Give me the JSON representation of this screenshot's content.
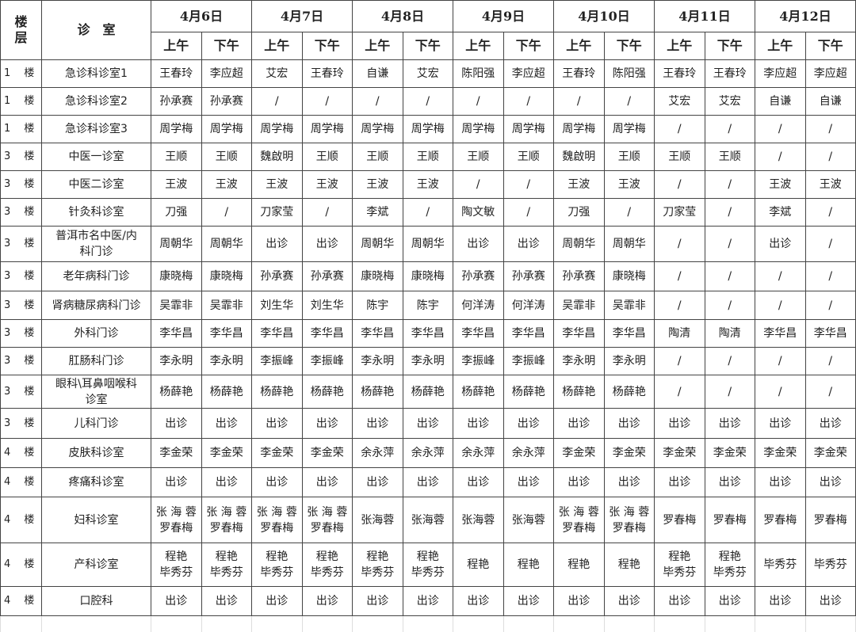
{
  "header": {
    "floor_label": "楼\n层",
    "room_label": "诊　室",
    "dates": [
      "4月6日",
      "4月7日",
      "4月8日",
      "4月9日",
      "4月10日",
      "4月11日",
      "4月12日"
    ],
    "am_label": "上午",
    "pm_label": "下午"
  },
  "rows": [
    {
      "floor": "1　 楼",
      "room": "急诊科诊室1",
      "cells": [
        "王春玲",
        "李应超",
        "艾宏",
        "王春玲",
        "自谦",
        "艾宏",
        "陈阳强",
        "李应超",
        "王春玲",
        "陈阳强",
        "王春玲",
        "王春玲",
        "李应超",
        "李应超"
      ]
    },
    {
      "floor": "1　 楼",
      "room": "急诊科诊室2",
      "cells": [
        "孙承赛",
        "孙承赛",
        "/",
        "/",
        "/",
        "/",
        "/",
        "/",
        "/",
        "/",
        "艾宏",
        "艾宏",
        "自谦",
        "自谦"
      ]
    },
    {
      "floor": "1　 楼",
      "room": "急诊科诊室3",
      "cells": [
        "周学梅",
        "周学梅",
        "周学梅",
        "周学梅",
        "周学梅",
        "周学梅",
        "周学梅",
        "周学梅",
        "周学梅",
        "周学梅",
        "/",
        "/",
        "/",
        "/"
      ]
    },
    {
      "floor": "3　 楼",
      "room": "中医一诊室",
      "cells": [
        "王顺",
        "王顺",
        "魏啟明",
        "王顺",
        "王顺",
        "王顺",
        "王顺",
        "王顺",
        "魏啟明",
        "王顺",
        "王顺",
        "王顺",
        "/",
        "/"
      ]
    },
    {
      "floor": "3　 楼",
      "room": "中医二诊室",
      "cells": [
        "王波",
        "王波",
        "王波",
        "王波",
        "王波",
        "王波",
        "/",
        "/",
        "王波",
        "王波",
        "/",
        "/",
        "王波",
        "王波"
      ]
    },
    {
      "floor": "3　 楼",
      "room": "针灸科诊室",
      "cells": [
        "刀强",
        "/",
        "刀家莹",
        "/",
        "李斌",
        "/",
        "陶文敏",
        "/",
        "刀强",
        "/",
        "刀家莹",
        "/",
        "李斌",
        "/"
      ]
    },
    {
      "floor": "3　 楼",
      "room": "普洱市名中医/内\n科门诊",
      "cells": [
        "周朝华",
        "周朝华",
        "出诊",
        "出诊",
        "周朝华",
        "周朝华",
        "出诊",
        "出诊",
        "周朝华",
        "周朝华",
        "/",
        "/",
        "出诊",
        "/"
      ]
    },
    {
      "floor": "3　 楼",
      "room": "老年病科门诊",
      "cells": [
        "康晓梅",
        "康晓梅",
        "孙承赛",
        "孙承赛",
        "康晓梅",
        "康晓梅",
        "孙承赛",
        "孙承赛",
        "孙承赛",
        "康晓梅",
        "/",
        "/",
        "/",
        "/"
      ]
    },
    {
      "floor": "3　 楼",
      "room": "肾病糖尿病科门诊",
      "cells": [
        "吴霏非",
        "吴霏非",
        "刘生华",
        "刘生华",
        "陈宇",
        "陈宇",
        "何洋涛",
        "何洋涛",
        "吴霏非",
        "吴霏非",
        "/",
        "/",
        "/",
        "/"
      ]
    },
    {
      "floor": "3　 楼",
      "room": "外科门诊",
      "cells": [
        "李华昌",
        "李华昌",
        "李华昌",
        "李华昌",
        "李华昌",
        "李华昌",
        "李华昌",
        "李华昌",
        "李华昌",
        "李华昌",
        "陶清",
        "陶清",
        "李华昌",
        "李华昌"
      ]
    },
    {
      "floor": "3　 楼",
      "room": "肛肠科门诊",
      "cells": [
        "李永明",
        "李永明",
        "李振峰",
        "李振峰",
        "李永明",
        "李永明",
        "李振峰",
        "李振峰",
        "李永明",
        "李永明",
        "/",
        "/",
        "/",
        "/"
      ]
    },
    {
      "floor": "3　 楼",
      "room": "眼科\\耳鼻咽喉科\n诊室",
      "cells": [
        "杨薛艳",
        "杨薛艳",
        "杨薛艳",
        "杨薛艳",
        "杨薛艳",
        "杨薛艳",
        "杨薛艳",
        "杨薛艳",
        "杨薛艳",
        "杨薛艳",
        "/",
        "/",
        "/",
        "/"
      ]
    },
    {
      "floor": "3　 楼",
      "room": "儿科门诊",
      "cells": [
        "出诊",
        "出诊",
        "出诊",
        "出诊",
        "出诊",
        "出诊",
        "出诊",
        "出诊",
        "出诊",
        "出诊",
        "出诊",
        "出诊",
        "出诊",
        "出诊"
      ]
    },
    {
      "floor": "4　 楼",
      "room": "皮肤科诊室",
      "cells": [
        "李金荣",
        "李金荣",
        "李金荣",
        "李金荣",
        "余永萍",
        "余永萍",
        "余永萍",
        "余永萍",
        "李金荣",
        "李金荣",
        "李金荣",
        "李金荣",
        "李金荣",
        "李金荣"
      ]
    },
    {
      "floor": "4　 楼",
      "room": "疼痛科诊室",
      "cells": [
        "出诊",
        "出诊",
        "出诊",
        "出诊",
        "出诊",
        "出诊",
        "出诊",
        "出诊",
        "出诊",
        "出诊",
        "出诊",
        "出诊",
        "出诊",
        "出诊"
      ]
    },
    {
      "floor": "4　 楼",
      "room": "妇科诊室",
      "cells": [
        "张 海 蓉\n罗春梅",
        "张 海 蓉\n罗春梅",
        "张 海 蓉\n罗春梅",
        "张 海 蓉\n罗春梅",
        "张海蓉",
        "张海蓉",
        "张海蓉",
        "张海蓉",
        "张 海 蓉\n罗春梅",
        "张 海 蓉\n罗春梅",
        "罗春梅",
        "罗春梅",
        "罗春梅",
        "罗春梅"
      ]
    },
    {
      "floor": "4　 楼",
      "room": "产科诊室",
      "cells": [
        "程艳\n毕秀芬",
        "程艳\n毕秀芬",
        "程艳\n毕秀芬",
        "程艳\n毕秀芬",
        "程艳\n毕秀芬",
        "程艳\n毕秀芬",
        "程艳",
        "程艳",
        "程艳",
        "程艳",
        "程艳\n毕秀芬",
        "程艳\n毕秀芬",
        "毕秀芬",
        "毕秀芬"
      ]
    },
    {
      "floor": "4　 楼",
      "room": "口腔科",
      "cells": [
        "出诊",
        "出诊",
        "出诊",
        "出诊",
        "出诊",
        "出诊",
        "出诊",
        "出诊",
        "出诊",
        "出诊",
        "出诊",
        "出诊",
        "出诊",
        "出诊"
      ]
    }
  ]
}
